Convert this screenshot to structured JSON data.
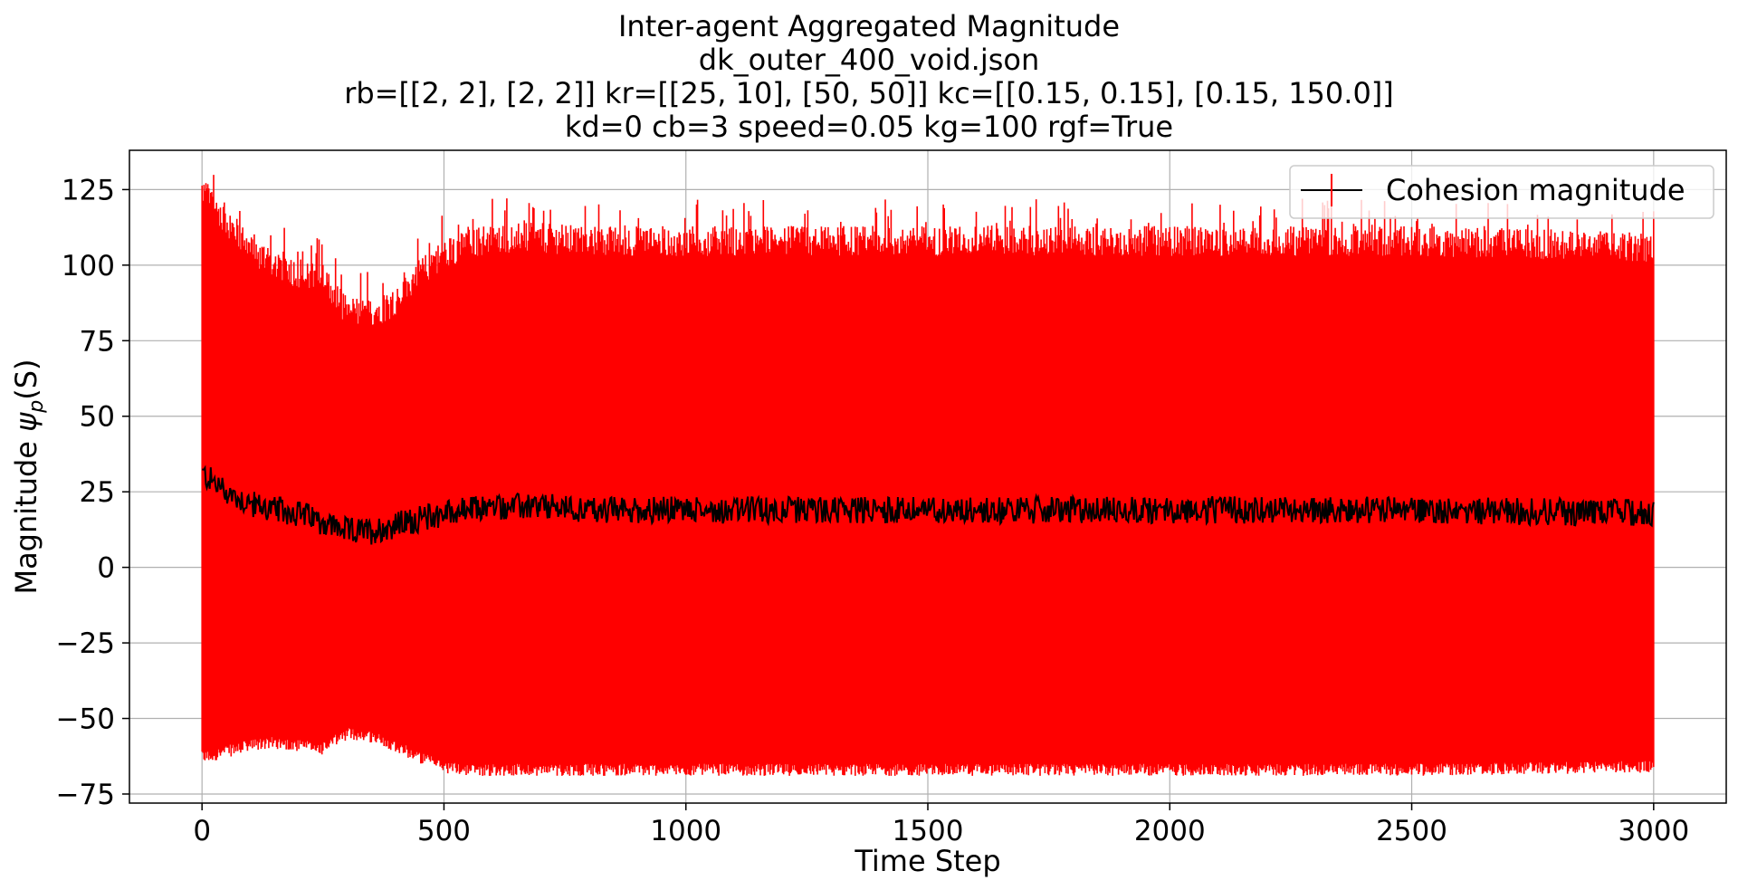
{
  "chart_data": {
    "type": "line",
    "title_lines": [
      "Inter-agent Aggregated Magnitude",
      "dk_outer_400_void.json",
      "rb=[[2, 2], [2, 2]] kr=[[25, 10], [50, 50]] kc=[[0.15, 0.15], [0.15, 150.0]]",
      "kd=0 cb=3 speed=0.05 kg=100 rgf=True"
    ],
    "xlabel": "Time Step",
    "ylabel": "Magnitude ψp(S)",
    "ylabel_main": "Magnitude ",
    "ylabel_symbol": "ψ",
    "ylabel_subscript": "p",
    "ylabel_suffix": "(S)",
    "xlim": [
      -150,
      3150
    ],
    "ylim": [
      -78,
      138
    ],
    "xticks": [
      0,
      500,
      1000,
      1500,
      2000,
      2500,
      3000
    ],
    "xtick_labels": [
      "0",
      "500",
      "1000",
      "1500",
      "2000",
      "2500",
      "3000"
    ],
    "yticks": [
      -75,
      -50,
      -25,
      0,
      25,
      50,
      75,
      100,
      125
    ],
    "ytick_labels": [
      "−75",
      "−50",
      "−25",
      "0",
      "25",
      "50",
      "75",
      "100",
      "125"
    ],
    "grid": true,
    "legend_position": "top-right",
    "series": [
      {
        "name": "Cohesion magnitude",
        "line_color": "#000000",
        "errorbar_color": "#ff0000",
        "x_start": 0,
        "x_end": 3000,
        "mean_profile": {
          "x": [
            0,
            50,
            100,
            150,
            200,
            250,
            300,
            350,
            400,
            450,
            500,
            550,
            600,
            700,
            800,
            1000,
            1500,
            2000,
            2500,
            3000
          ],
          "y": [
            31,
            25,
            21,
            19,
            18,
            15,
            12,
            12,
            14,
            16,
            18,
            19,
            20,
            20,
            19,
            19,
            19,
            19,
            19,
            18
          ]
        },
        "upper_profile": {
          "x": [
            0,
            50,
            100,
            150,
            200,
            250,
            300,
            350,
            400,
            450,
            500,
            550,
            600,
            700,
            800,
            1000,
            1500,
            2000,
            2500,
            3000
          ],
          "y": [
            125,
            115,
            105,
            101,
            97,
            95,
            85,
            84,
            88,
            97,
            104,
            107,
            109,
            109,
            108,
            108,
            108,
            108,
            108,
            106
          ]
        },
        "lower_profile": {
          "x": [
            0,
            50,
            100,
            150,
            200,
            250,
            300,
            350,
            400,
            450,
            500,
            550,
            600,
            700,
            800,
            1000,
            1500,
            2000,
            2500,
            3000
          ],
          "y": [
            -63,
            -61,
            -59,
            -58,
            -59,
            -60,
            -55,
            -56,
            -59,
            -63,
            -66,
            -67,
            -67,
            -67,
            -67,
            -67,
            -67,
            -67,
            -67,
            -66
          ]
        }
      }
    ]
  }
}
